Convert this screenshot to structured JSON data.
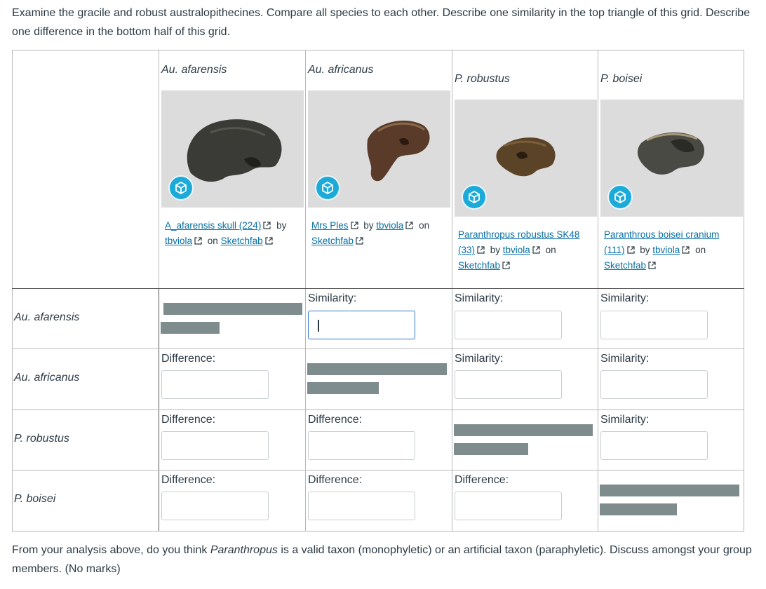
{
  "intro_text": "Examine the gracile and robust australopithecines. Compare all species to each other. Describe one similarity in the top triangle of this grid. Describe one difference in the bottom half of this grid.",
  "outro": {
    "before": "From your analysis above, do you think ",
    "taxon": "Paranthropus",
    "after": " is a valid taxon (monophyletic) or an artificial taxon (paraphyletic). Discuss amongst your group members. (No marks)"
  },
  "species": [
    {
      "name": "Au. afarensis",
      "model_link": "A_afarensis skull (224)",
      "by": " by ",
      "author": "tbviola",
      "on": " on ",
      "site": "Sketchfab",
      "skull_color": "#3a3a36"
    },
    {
      "name": "Au. africanus",
      "model_link": "Mrs Ples",
      "by": " by ",
      "author": "tbviola",
      "on": " on ",
      "site": "Sketchfab",
      "skull_color": "#5a3a28"
    },
    {
      "name": "P. robustus",
      "model_link": "Paranthropus robustus SK48 (33)",
      "by": " by ",
      "author": "tbviola",
      "on": " on ",
      "site": "Sketchfab",
      "skull_color": "#5b4327"
    },
    {
      "name": "P. boisei",
      "model_link": "Paranthrous boisei cranium (111)",
      "by": " by ",
      "author": "tbviola",
      "on": " on ",
      "site": "Sketchfab",
      "skull_color": "#4a4a44"
    }
  ],
  "labels": {
    "similarity": "Similarity:",
    "difference": "Difference:"
  },
  "colors": {
    "link": "#0770a3",
    "redaction": "#7e8c8d",
    "sketchfab": "#1caad9",
    "focus_border": "#2e78c8"
  }
}
